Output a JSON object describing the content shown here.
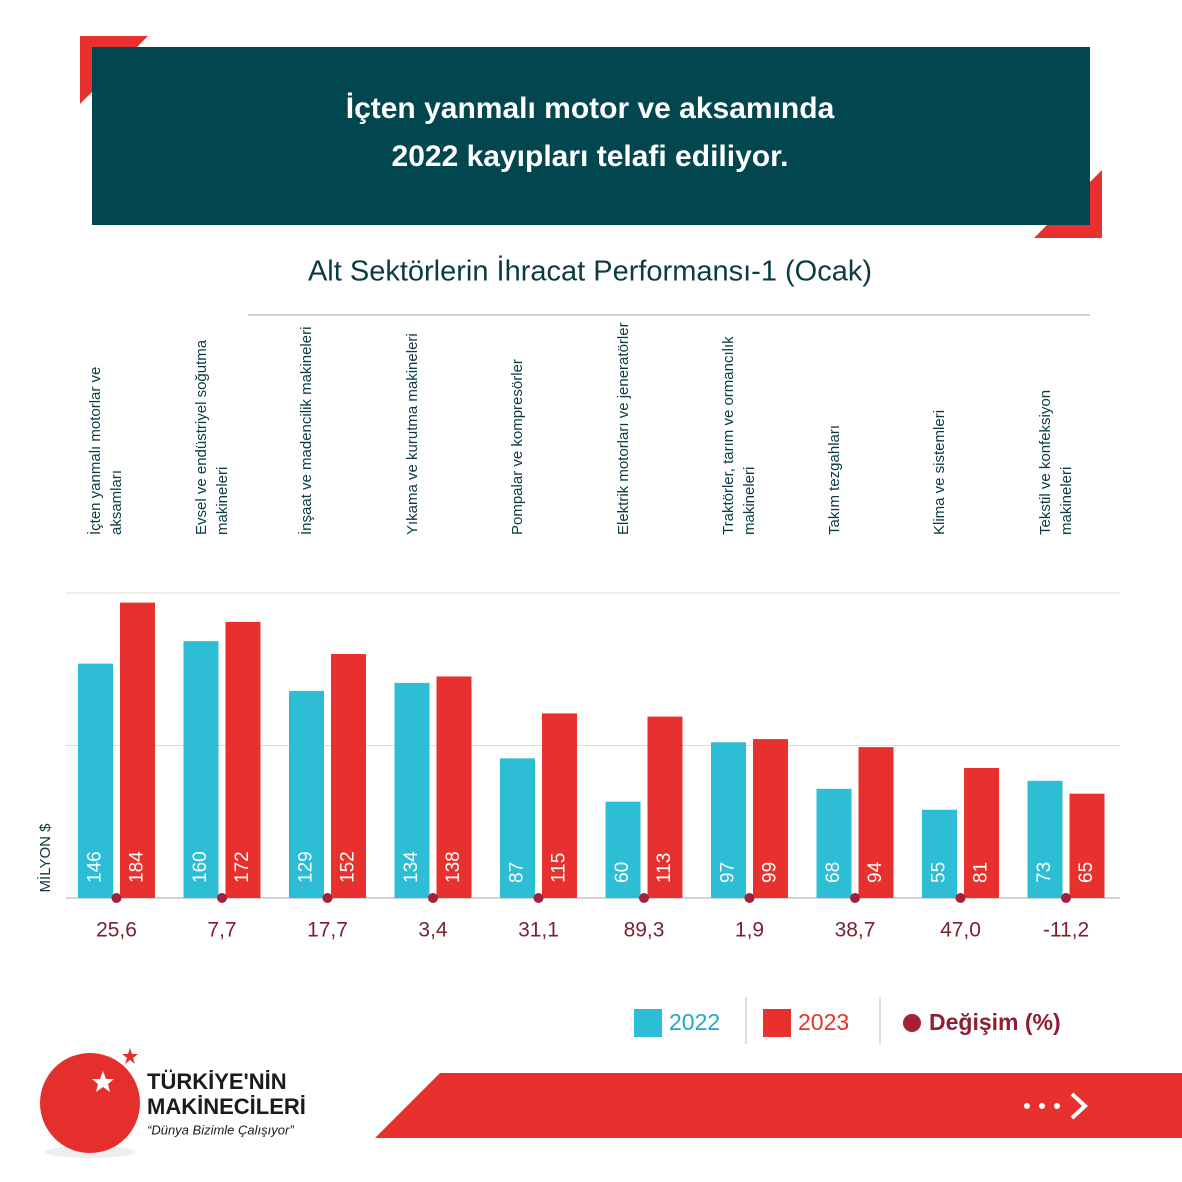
{
  "chart_data": {
    "type": "bar",
    "headline": "İçten yanmalı motor ve aksamında\n2022 kayıpları telafi ediliyor.",
    "title": "Alt Sektörlerin İhracat Performansı-1 (Ocak)",
    "y_label": "MİLYON $",
    "categories": [
      "İçten yanmalı motorlar ve aksamları",
      "Evsel ve endüstriyel soğutma makineleri",
      "İnşaat ve madencilik makineleri",
      "Yıkama ve kurutma makineleri",
      "Pompalar ve kompresörler",
      "Elektrik motorları ve jeneratörler",
      "Traktörler, tarım ve ormancılık makineleri",
      "Takım tezgahları",
      "Klima ve sistemleri",
      "Tekstil ve konfeksiyon makineleri"
    ],
    "series": [
      {
        "name": "2022",
        "color": "#2dbdd5",
        "values": [
          146,
          160,
          129,
          134,
          87,
          60,
          97,
          68,
          55,
          73
        ]
      },
      {
        "name": "2023",
        "color": "#e8312f",
        "values": [
          184,
          172,
          152,
          138,
          115,
          113,
          99,
          94,
          81,
          65
        ]
      },
      {
        "name": "Değişim (%)",
        "color": "#a3213a",
        "values": [
          25.6,
          7.7,
          17.7,
          3.4,
          31.1,
          89.3,
          1.9,
          38.7,
          47.0,
          -11.2
        ],
        "value_labels": [
          "25,6",
          "7,7",
          "17,7",
          "3,4",
          "31,1",
          "89,3",
          "1,9",
          "38,7",
          "47,0",
          "-11,2"
        ]
      }
    ],
    "ylim": [
      0,
      190
    ],
    "gridlines": [
      0,
      95,
      190
    ]
  },
  "footer": {
    "brand_line1": "TÜRKİYE'NİN",
    "brand_line2": "MAKİNECİLERİ",
    "slogan": "“Dünya Bizimle Çalışıyor”"
  }
}
